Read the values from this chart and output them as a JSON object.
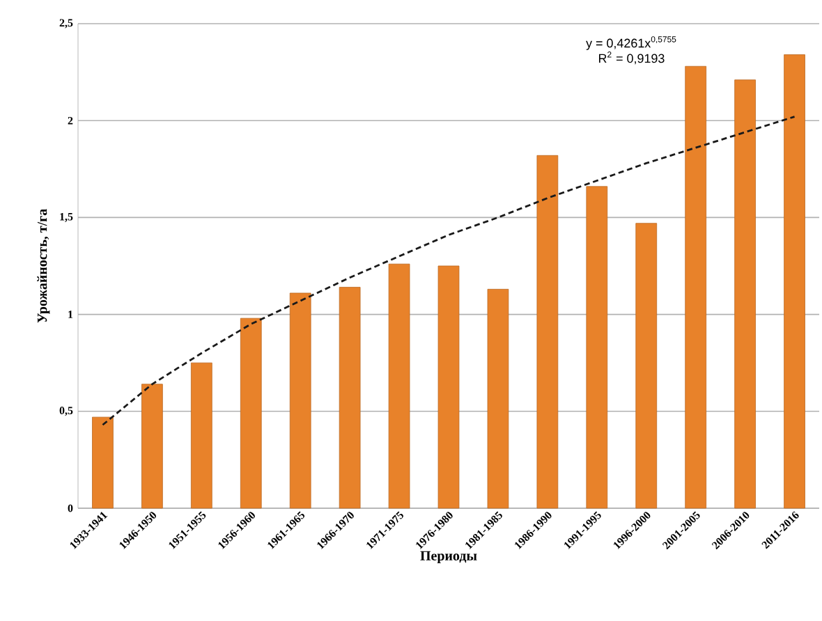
{
  "chart_data": {
    "type": "bar",
    "xlabel": "Периоды",
    "ylabel": "Урожайность, т/га",
    "categories": [
      "1933-1941",
      "1946-1950",
      "1951-1955",
      "1956-1960",
      "1961-1965",
      "1966-1970",
      "1971-1975",
      "1976-1980",
      "1981-1985",
      "1986-1990",
      "1991-1995",
      "1996-2000",
      "2001-2005",
      "2006-2010",
      "2011-2016"
    ],
    "series": [
      {
        "color": "#e8822a",
        "values": [
          0.47,
          0.64,
          0.75,
          0.98,
          1.11,
          1.14,
          1.26,
          1.25,
          1.13,
          1.82,
          1.66,
          1.47,
          2.28,
          2.21,
          2.34
        ]
      },
      {
        "type": "line",
        "color": "#1a1a1a",
        "line_style": "dashed",
        "values": [
          0.43,
          0.64,
          0.8,
          0.95,
          1.07,
          1.19,
          1.3,
          1.41,
          1.5,
          1.6,
          1.69,
          1.78,
          1.86,
          1.94,
          2.02
        ]
      }
    ],
    "ylim": [
      0,
      2.5
    ],
    "yticks": [
      0,
      {
        "value": 0.5,
        "label": "0,5"
      },
      1,
      {
        "value": 1.5,
        "label": "1,5"
      },
      2,
      {
        "value": 2.5,
        "label": "2,5"
      }
    ],
    "grid": "y",
    "annotations": [
      "y = 0,4261x$^{0,5755}$",
      "R$^{2}$ = 0,9193"
    ]
  }
}
